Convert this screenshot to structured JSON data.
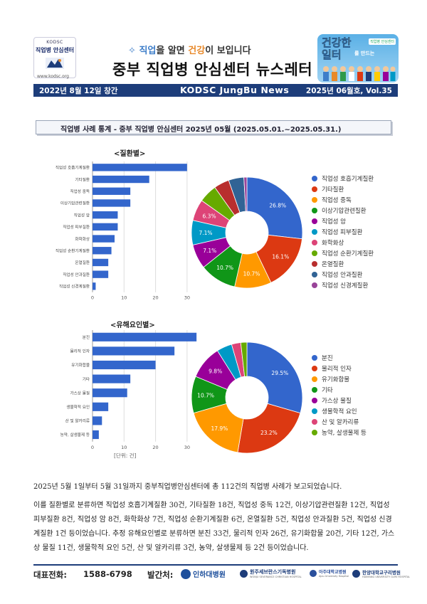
{
  "header": {
    "logo_top": "KODSC",
    "logo_main": "직업병 안심센터",
    "logo_url": "www.kodsc.org",
    "slogan_part1": "직업",
    "slogan_part2": "을 알면 ",
    "slogan_part3": "건강",
    "slogan_part4": "이 보입니다",
    "title": "중부 직업병 안심센터 뉴스레터",
    "badge_line1": "건강한",
    "badge_line2": "일터",
    "badge_line3": "를 만드는",
    "badge_tag": "직업병 안심센터"
  },
  "banner": {
    "left": "2022년 8월 12일 창간",
    "center": "KODSC JungBu News",
    "right": "2025년 06월호, Vol.35"
  },
  "section_header": "직업병 사례 통계 - 중부 직업병 안심센터   2025년 05월 (2025.05.01.~2025.05.31.)",
  "chart_data": [
    {
      "type": "bar",
      "orientation": "horizontal",
      "title": "<질환별>",
      "categories": [
        "직업성 호흡기계질환",
        "기타질환",
        "직업성 중독",
        "이상기압관련질환",
        "직업성 암",
        "직업성 피부질환",
        "화학화상",
        "직업성 순환기계질환",
        "온열질환",
        "직업성 안과질환",
        "직업성 신경계질환"
      ],
      "values": [
        30,
        18,
        12,
        12,
        8,
        8,
        7,
        6,
        5,
        5,
        1
      ],
      "xlim": [
        0,
        35
      ],
      "xticks": [
        0,
        10,
        20,
        30
      ],
      "unit_label": "[단위: 건]",
      "grid": true
    },
    {
      "type": "pie",
      "donut": true,
      "categories": [
        "직업성 호흡기계질환",
        "기타질환",
        "직업성 중독",
        "이상기압관련질환",
        "직업성 암",
        "직업성 피부질환",
        "화학화상",
        "직업성 순환기계질환",
        "온열질환",
        "직업성 안과질환",
        "직업성 신경계질환"
      ],
      "values": [
        30,
        18,
        12,
        12,
        8,
        8,
        7,
        6,
        5,
        5,
        1
      ],
      "labels": [
        "26.8%",
        "16.1%",
        "10.7%",
        "10.7%",
        "7.1%",
        "7.1%",
        "6.3%",
        "",
        "",
        "",
        ""
      ],
      "colors": [
        "#3366cc",
        "#dc3912",
        "#ff9900",
        "#109618",
        "#990099",
        "#0099c6",
        "#dd4477",
        "#66aa00",
        "#b82e2e",
        "#316395",
        "#994499"
      ],
      "legend_position": "right"
    },
    {
      "type": "bar",
      "orientation": "horizontal",
      "title": "<유해요인별>",
      "categories": [
        "분진",
        "물리적 인자",
        "유기화합물",
        "기타",
        "가스상 물질",
        "생물학적 요인",
        "산 및 알카리류",
        "농약, 살생물제 등"
      ],
      "values": [
        33,
        26,
        20,
        12,
        11,
        5,
        3,
        2
      ],
      "xlim": [
        0,
        35
      ],
      "xticks": [
        0,
        10,
        20,
        30
      ],
      "unit_label": "[단위: 건]",
      "grid": true
    },
    {
      "type": "pie",
      "donut": true,
      "categories": [
        "분진",
        "물리적 인자",
        "유기화합물",
        "기타",
        "가스상 물질",
        "생물학적 요인",
        "산 및 알카리류",
        "농약, 살생물제 등"
      ],
      "values": [
        33,
        26,
        20,
        12,
        11,
        5,
        3,
        2
      ],
      "labels": [
        "29.5%",
        "23.2%",
        "17.9%",
        "10.7%",
        "9.8%",
        "",
        "",
        ""
      ],
      "colors": [
        "#3366cc",
        "#dc3912",
        "#ff9900",
        "#109618",
        "#990099",
        "#0099c6",
        "#dd4477",
        "#66aa00"
      ],
      "legend_position": "right"
    }
  ],
  "paragraphs": [
    "2025년 5월 1일부터 5월 31일까지 중부직업병안심센터에 총 112건의 직업병 사례가 보고되었습니다.",
    "이를 질환별로 분류하면 직업성 호흡기계질환 30건, 기타질환 18건, 직업성 중독 12건, 이상기압관련질환 12건, 직업성 피부질환 8건, 직업성 암 8건, 화학화상 7건, 직업성 순환기계질환 6건, 온열질환 5건, 직업성 안과질환 5건, 직업성 신경계질환 1건 등이었습니다. 추정 유해요인별로 분류하면 분진 33건, 물리적 인자 26건, 유기화합물 20건, 기타 12건, 가스상 물질 11건, 생물학적 요인 5건, 산 및 알카리류 3건, 농약, 살생물제 등 2건 등이었습니다."
  ],
  "footer": {
    "phone_label": "대표전화:",
    "phone": "1588-6798",
    "publisher_label": "발간처:",
    "hospitals": [
      {
        "name": "인하대병원",
        "color": "#1d4f9c"
      },
      {
        "name": "원주세브란스기독병원",
        "sub": "WONJU SEVERANCE CHRISTIAN HOSPITAL",
        "color": "#1d3d7a"
      },
      {
        "name": "아주대학교병원",
        "sub": "Ajou University Hospital",
        "color": "#2a4f9c"
      },
      {
        "name": "한양대학교구리병원",
        "sub": "HANYANG UNIVERSITY GURI HOSPITAL",
        "color": "#1d3d7a"
      }
    ]
  }
}
